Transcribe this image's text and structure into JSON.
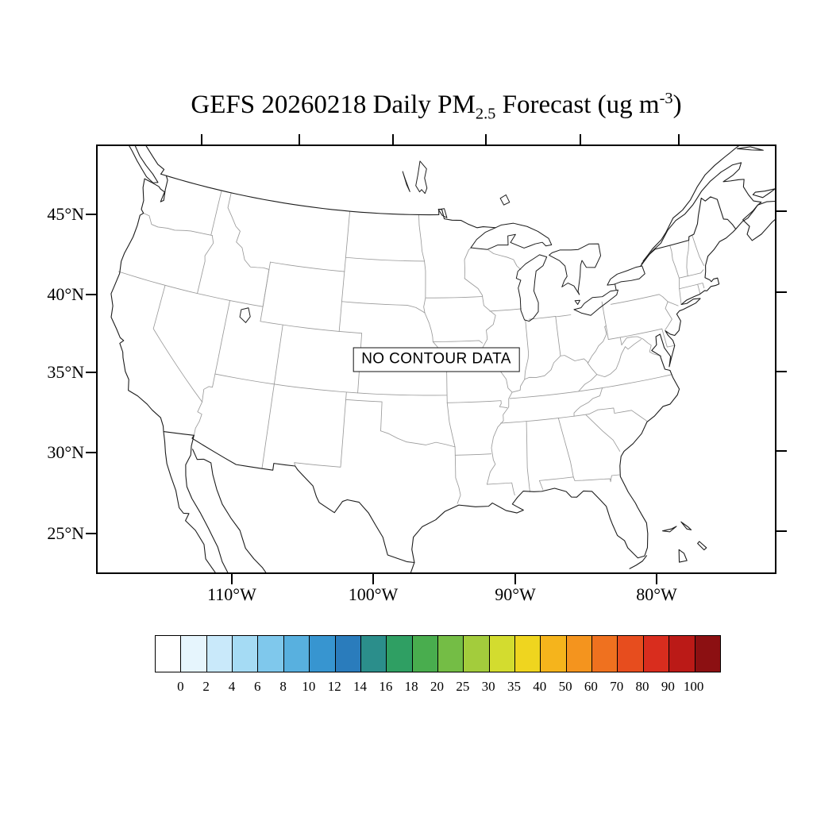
{
  "title": {
    "prefix": "GEFS 20260218 Daily PM",
    "subscript": "2.5",
    "middle": " Forecast (ug m",
    "superscript": "-3",
    "suffix": ")"
  },
  "map": {
    "no_data_label": "NO CONTOUR DATA",
    "y_axis_labels": [
      "45°N",
      "40°N",
      "35°N",
      "30°N",
      "25°N"
    ],
    "x_axis_labels": [
      "110°W",
      "100°W",
      "90°W",
      "80°W"
    ]
  },
  "colorbar": {
    "labels": [
      "0",
      "2",
      "4",
      "6",
      "8",
      "10",
      "12",
      "14",
      "16",
      "18",
      "20",
      "25",
      "30",
      "35",
      "40",
      "50",
      "60",
      "70",
      "80",
      "90",
      "100"
    ],
    "colors": [
      "#ffffff",
      "#e6f5fd",
      "#c9e9fa",
      "#a5dbf4",
      "#7fc8ec",
      "#58b0df",
      "#3795d0",
      "#2a7cbc",
      "#2b8e8b",
      "#2f9f63",
      "#49ad4e",
      "#74bd45",
      "#a3cc3c",
      "#d3dc2f",
      "#efd51f",
      "#f5b41c",
      "#f4941e",
      "#ef711f",
      "#e74d1e",
      "#d92d1e",
      "#bb1a17",
      "#8c1012"
    ]
  }
}
